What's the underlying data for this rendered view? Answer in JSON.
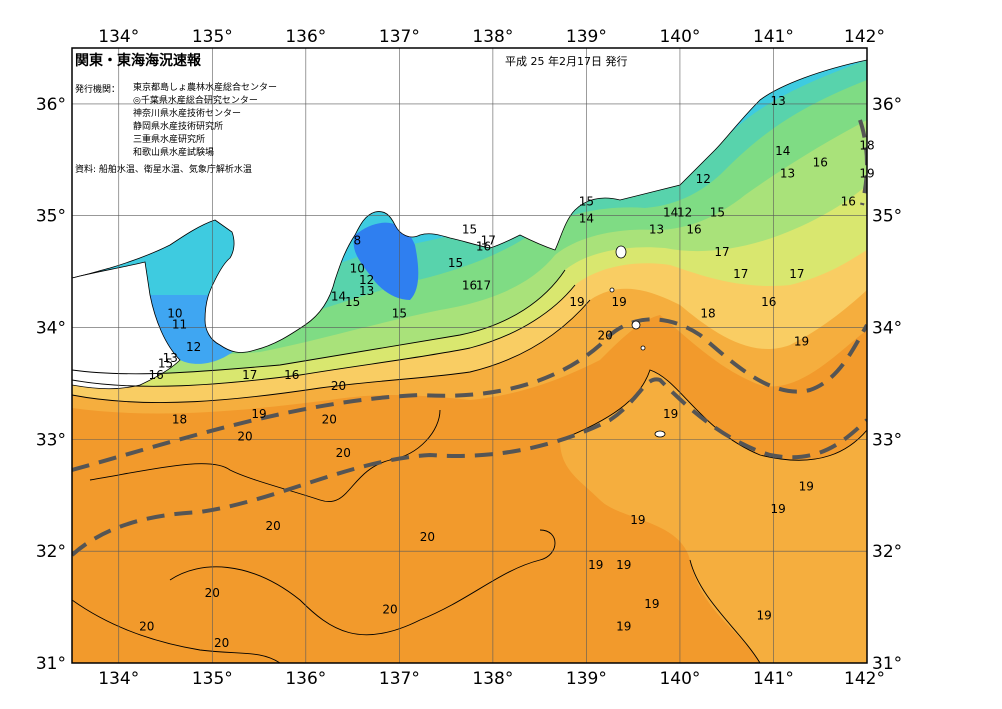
{
  "header": {
    "title": "関東・東海海況速報",
    "issued": "平成 25 年2月17日 発行",
    "orgs_label": "発行機関：",
    "orgs": [
      "東京都島しょ農林水産総合センター",
      "◎千葉県水産総合研究センター",
      "神奈川県水産技術センター",
      "静岡県水産技術研究所",
      "三重県水産研究所",
      "和歌山県水産試験場"
    ],
    "sources": "資料: 船舶水温、衛星水温、気象庁解析水温"
  },
  "axes": {
    "lon_labels": [
      "134°",
      "135°",
      "136°",
      "137°",
      "138°",
      "139°",
      "140°",
      "141°",
      "142°"
    ],
    "lat_labels": [
      "31°",
      "32°",
      "33°",
      "34°",
      "35°",
      "36°"
    ],
    "lon_range": [
      133.5,
      142.0
    ],
    "lat_range": [
      31.0,
      36.5
    ]
  },
  "colors": {
    "warm_20": "#f29a2c",
    "warm_19": "#f5ae3e",
    "band_18": "#f9cd63",
    "band_17": "#d9e76f",
    "band_16": "#a9e27a",
    "band_15": "#7fdc84",
    "band_14": "#58d3ac",
    "band_13": "#3ecbe0",
    "band_12": "#3fa6f2",
    "cold_11": "#2f7ff0",
    "land": "#ffffff",
    "kuroshio_axis": "#555555"
  },
  "contour_labels": [
    {
      "text": "13",
      "lon": 141.05,
      "lat": 36.0
    },
    {
      "text": "14",
      "lon": 141.1,
      "lat": 35.55
    },
    {
      "text": "13",
      "lon": 141.15,
      "lat": 35.35
    },
    {
      "text": "16",
      "lon": 141.5,
      "lat": 35.45
    },
    {
      "text": "16",
      "lon": 141.8,
      "lat": 35.1
    },
    {
      "text": "18",
      "lon": 142.0,
      "lat": 35.6
    },
    {
      "text": "19",
      "lon": 142.0,
      "lat": 35.35
    },
    {
      "text": "12",
      "lon": 140.25,
      "lat": 35.3
    },
    {
      "text": "15",
      "lon": 139.0,
      "lat": 35.1
    },
    {
      "text": "14",
      "lon": 139.0,
      "lat": 34.95
    },
    {
      "text": "14",
      "lon": 139.9,
      "lat": 35.0
    },
    {
      "text": "12",
      "lon": 140.05,
      "lat": 35.0
    },
    {
      "text": "15",
      "lon": 140.4,
      "lat": 35.0
    },
    {
      "text": "13",
      "lon": 139.75,
      "lat": 34.85
    },
    {
      "text": "16",
      "lon": 140.15,
      "lat": 34.85
    },
    {
      "text": "17",
      "lon": 140.45,
      "lat": 34.65
    },
    {
      "text": "17",
      "lon": 140.65,
      "lat": 34.45
    },
    {
      "text": "17",
      "lon": 141.25,
      "lat": 34.45
    },
    {
      "text": "18",
      "lon": 140.3,
      "lat": 34.1
    },
    {
      "text": "16",
      "lon": 140.95,
      "lat": 34.2
    },
    {
      "text": "19",
      "lon": 141.3,
      "lat": 33.85
    },
    {
      "text": "15",
      "lon": 137.75,
      "lat": 34.85
    },
    {
      "text": "17",
      "lon": 137.95,
      "lat": 34.75
    },
    {
      "text": "16",
      "lon": 137.9,
      "lat": 34.7
    },
    {
      "text": "15",
      "lon": 137.6,
      "lat": 34.55
    },
    {
      "text": "16",
      "lon": 137.75,
      "lat": 34.35
    },
    {
      "text": "17",
      "lon": 137.9,
      "lat": 34.35
    },
    {
      "text": "19",
      "lon": 138.9,
      "lat": 34.2
    },
    {
      "text": "19",
      "lon": 139.35,
      "lat": 34.2
    },
    {
      "text": "20",
      "lon": 139.2,
      "lat": 33.9
    },
    {
      "text": "8",
      "lon": 136.55,
      "lat": 34.75
    },
    {
      "text": "10",
      "lon": 136.55,
      "lat": 34.5
    },
    {
      "text": "12",
      "lon": 136.65,
      "lat": 34.4
    },
    {
      "text": "13",
      "lon": 136.65,
      "lat": 34.3
    },
    {
      "text": "14",
      "lon": 136.35,
      "lat": 34.25
    },
    {
      "text": "15",
      "lon": 136.5,
      "lat": 34.2
    },
    {
      "text": "15",
      "lon": 137.0,
      "lat": 34.1
    },
    {
      "text": "10",
      "lon": 134.6,
      "lat": 34.1
    },
    {
      "text": "11",
      "lon": 134.65,
      "lat": 34.0
    },
    {
      "text": "12",
      "lon": 134.8,
      "lat": 33.8
    },
    {
      "text": "13",
      "lon": 134.55,
      "lat": 33.7
    },
    {
      "text": "15",
      "lon": 134.5,
      "lat": 33.65
    },
    {
      "text": "16",
      "lon": 134.4,
      "lat": 33.55
    },
    {
      "text": "17",
      "lon": 135.4,
      "lat": 33.55
    },
    {
      "text": "16",
      "lon": 135.85,
      "lat": 33.55
    },
    {
      "text": "20",
      "lon": 136.35,
      "lat": 33.45
    },
    {
      "text": "18",
      "lon": 134.65,
      "lat": 33.15
    },
    {
      "text": "19",
      "lon": 135.5,
      "lat": 33.2
    },
    {
      "text": "20",
      "lon": 135.35,
      "lat": 33.0
    },
    {
      "text": "20",
      "lon": 136.25,
      "lat": 33.15
    },
    {
      "text": "20",
      "lon": 136.4,
      "lat": 32.85
    },
    {
      "text": "19",
      "lon": 139.9,
      "lat": 33.2
    },
    {
      "text": "19",
      "lon": 141.35,
      "lat": 32.55
    },
    {
      "text": "19",
      "lon": 141.05,
      "lat": 32.35
    },
    {
      "text": "19",
      "lon": 139.55,
      "lat": 32.25
    },
    {
      "text": "20",
      "lon": 135.65,
      "lat": 32.2
    },
    {
      "text": "20",
      "lon": 137.3,
      "lat": 32.1
    },
    {
      "text": "19",
      "lon": 139.1,
      "lat": 31.85
    },
    {
      "text": "19",
      "lon": 139.4,
      "lat": 31.85
    },
    {
      "text": "19",
      "lon": 139.7,
      "lat": 31.5
    },
    {
      "text": "19",
      "lon": 140.9,
      "lat": 31.4
    },
    {
      "text": "19",
      "lon": 139.4,
      "lat": 31.3
    },
    {
      "text": "20",
      "lon": 135.0,
      "lat": 31.6
    },
    {
      "text": "20",
      "lon": 134.3,
      "lat": 31.3
    },
    {
      "text": "20",
      "lon": 135.1,
      "lat": 31.15
    },
    {
      "text": "20",
      "lon": 136.9,
      "lat": 31.45
    }
  ]
}
